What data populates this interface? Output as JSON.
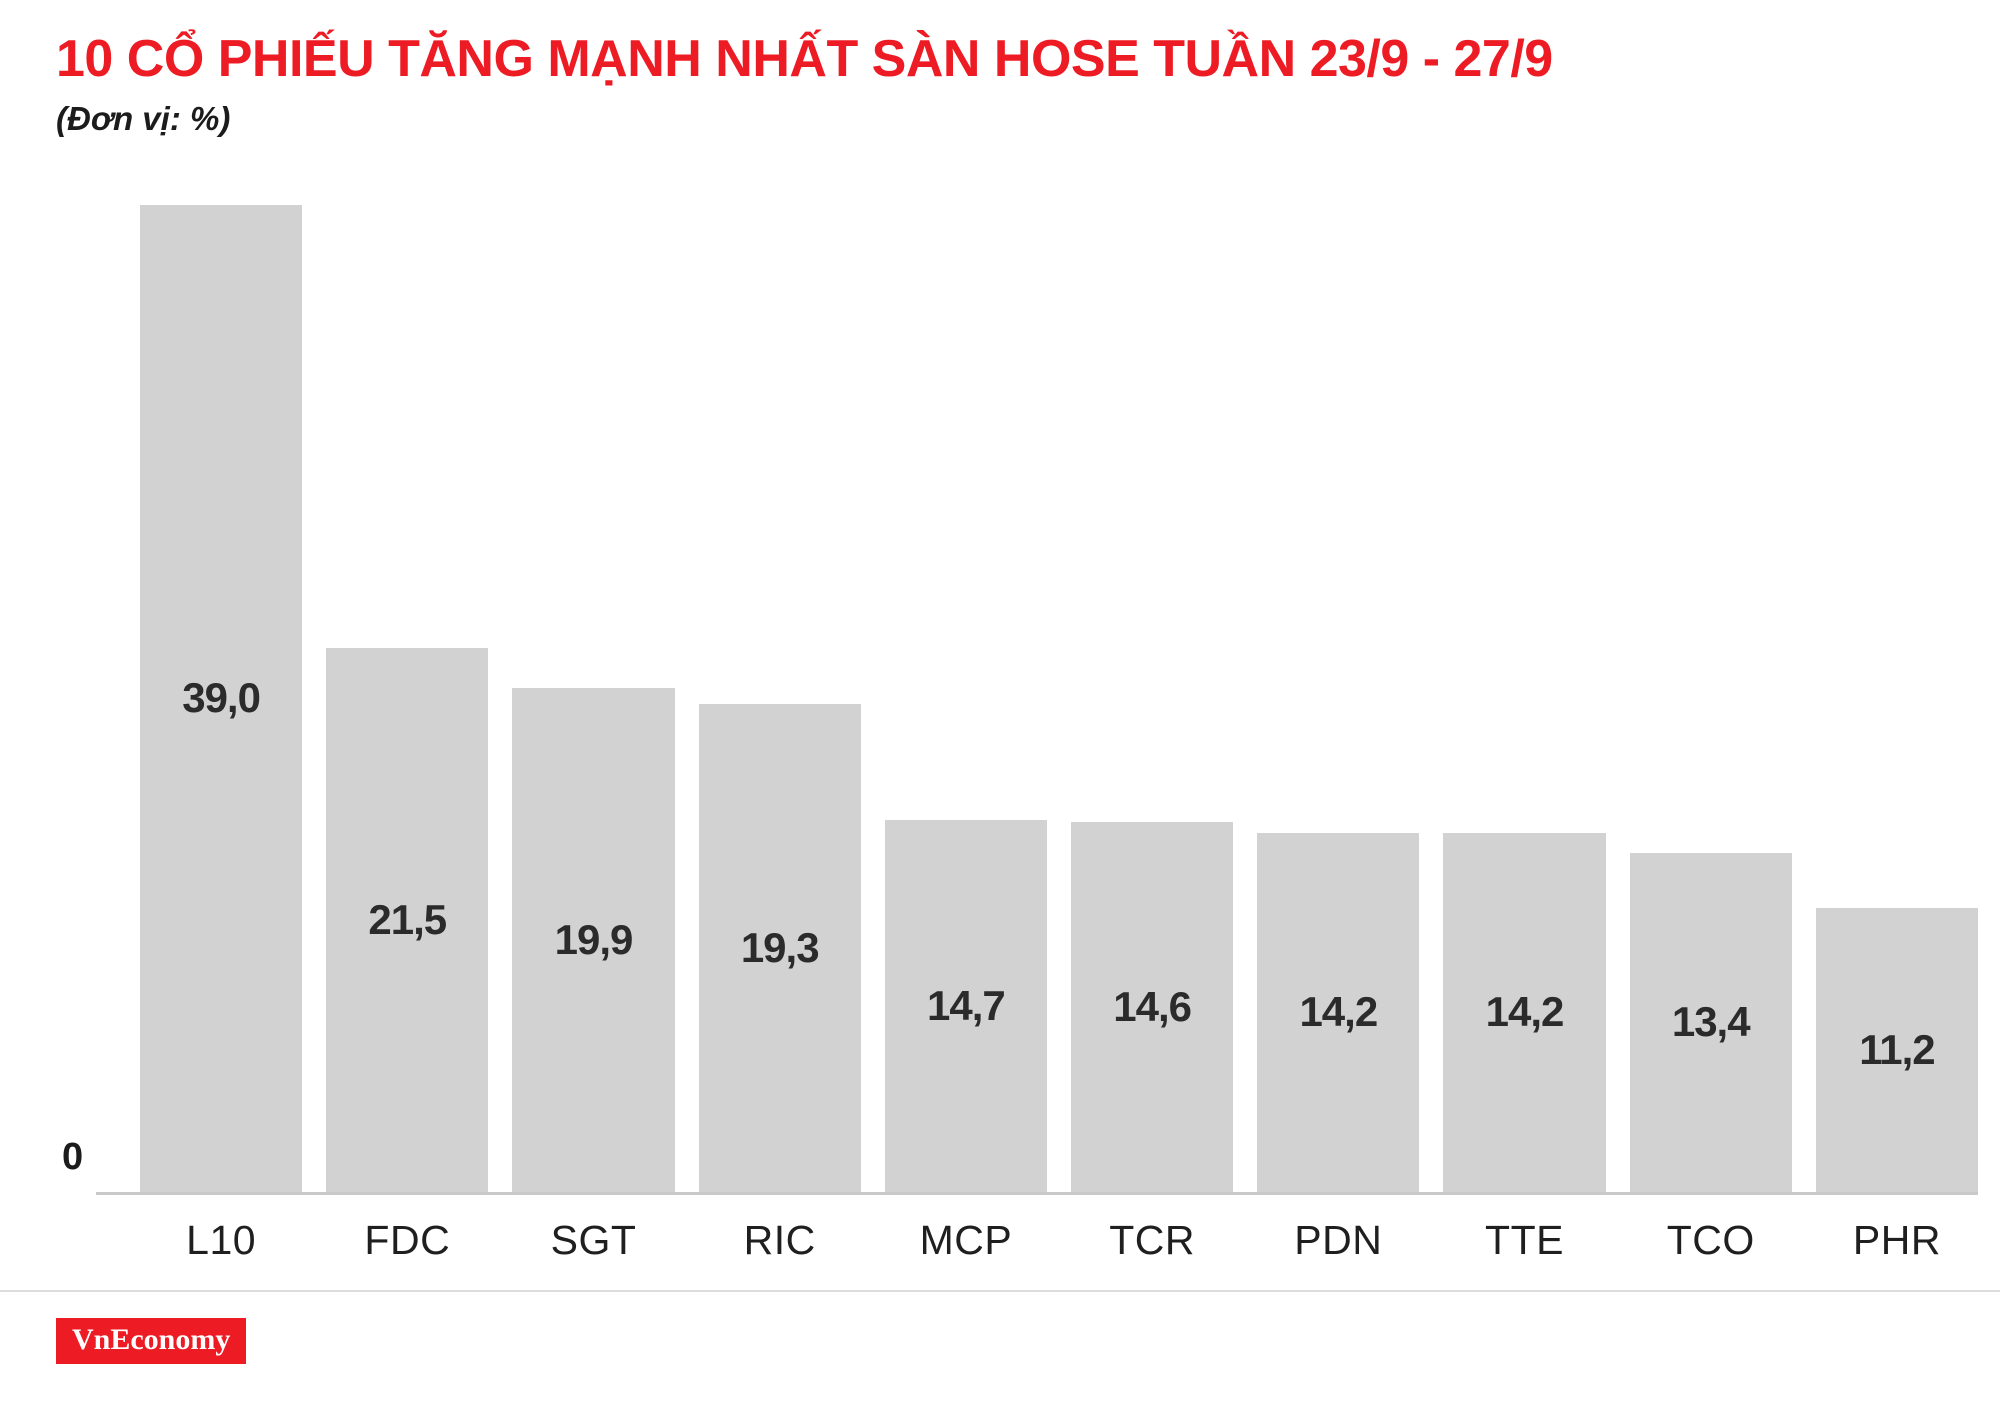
{
  "header": {
    "title": "10 CỔ PHIẾU TĂNG MẠNH NHẤT SÀN HOSE TUẦN 23/9 - 27/9",
    "subtitle": "(Đơn vị: %)"
  },
  "chart_data": {
    "type": "bar",
    "title": "10 CỔ PHIẾU TĂNG MẠNH NHẤT SÀN HOSE TUẦN 23/9 - 27/9",
    "unit": "%",
    "categories": [
      "L10",
      "FDC",
      "SGT",
      "RIC",
      "MCP",
      "TCR",
      "PDN",
      "TTE",
      "TCO",
      "PHR"
    ],
    "values": [
      39.0,
      21.5,
      19.9,
      19.3,
      14.7,
      14.6,
      14.2,
      14.2,
      13.4,
      11.2
    ],
    "value_labels": [
      "39,0",
      "21,5",
      "19,9",
      "19,3",
      "14,7",
      "14,6",
      "14,2",
      "14,2",
      "13,4",
      "11,2"
    ],
    "xlabel": "",
    "ylabel": "(Đơn vị: %)",
    "ylim": [
      0,
      40
    ],
    "baseline_label": "0",
    "grid": false,
    "legend": "none",
    "value_label_position": "inside-center"
  },
  "theme": {
    "accent_red": "#ed1c24",
    "bar_fill": "#d2d2d3",
    "text_dark": "#2b2b2b",
    "axis_gray": "#c9c9c9",
    "separator_gray": "#dcdcdc",
    "brand_bg": "#ed1c24",
    "brand_text": "#ffffff",
    "background": "#ffffff"
  },
  "footer": {
    "brand": "VnEconomy"
  }
}
